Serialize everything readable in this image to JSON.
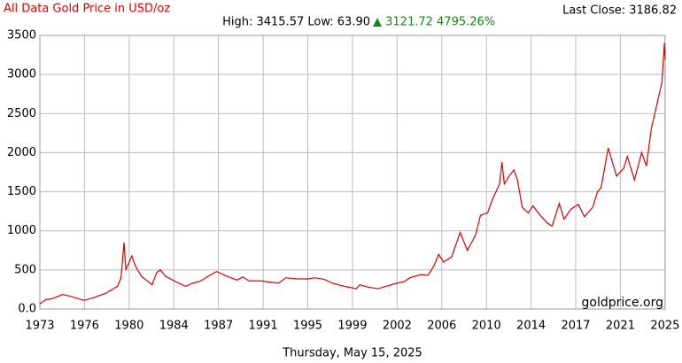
{
  "chart_data": {
    "type": "line",
    "title": "All Data Gold Price in USD/oz",
    "subtitle": "High: 3415.57 Low: 63.90",
    "change": "▲ 3121.72 4795.26%",
    "last_close": "Last Close: 3186.82",
    "watermark": "goldprice.org",
    "date": "Thursday, May 15, 2025",
    "x": [
      1973.0,
      1973.5,
      1974.0,
      1974.9,
      1975.5,
      1976.7,
      1977.5,
      1978.5,
      1979.5,
      1979.8,
      1980.05,
      1980.2,
      1980.7,
      1981.0,
      1981.5,
      1982.4,
      1982.8,
      1983.1,
      1983.5,
      1984.0,
      1984.5,
      1985.2,
      1985.8,
      1986.5,
      1987.0,
      1987.8,
      1988.5,
      1989.5,
      1990.0,
      1990.5,
      1991.5,
      1992.5,
      1993.0,
      1993.6,
      1994.5,
      1995.5,
      1996.0,
      1996.8,
      1997.5,
      1998.5,
      1999.5,
      1999.8,
      2000.5,
      2001.3,
      2002.0,
      2002.9,
      2003.5,
      2004.0,
      2004.9,
      2005.5,
      2006.0,
      2006.4,
      2006.8,
      2007.5,
      2008.2,
      2008.8,
      2009.5,
      2009.9,
      2010.5,
      2010.9,
      2011.5,
      2011.7,
      2011.9,
      2012.3,
      2012.7,
      2013.0,
      2013.4,
      2013.9,
      2014.3,
      2014.9,
      2015.5,
      2015.9,
      2016.5,
      2016.9,
      2017.5,
      2018.1,
      2018.6,
      2019.3,
      2019.7,
      2020.0,
      2020.6,
      2021.0,
      2021.3,
      2021.9,
      2022.2,
      2022.8,
      2023.4,
      2023.8,
      2024.2,
      2024.8,
      2025.1,
      2025.3,
      2025.37
    ],
    "series": [
      {
        "name": "Gold",
        "color": "#dd0000",
        "values": [
          65,
          120,
          130,
          185,
          165,
          110,
          145,
          200,
          290,
          400,
          850,
          500,
          680,
          550,
          420,
          310,
          470,
          500,
          420,
          380,
          340,
          290,
          330,
          360,
          410,
          480,
          430,
          370,
          410,
          360,
          360,
          340,
          330,
          400,
          385,
          385,
          400,
          380,
          330,
          290,
          260,
          310,
          280,
          260,
          290,
          330,
          350,
          400,
          440,
          430,
          550,
          700,
          600,
          670,
          980,
          750,
          950,
          1200,
          1230,
          1400,
          1600,
          1880,
          1600,
          1700,
          1780,
          1650,
          1300,
          1230,
          1320,
          1200,
          1100,
          1060,
          1350,
          1150,
          1280,
          1340,
          1180,
          1300,
          1500,
          1550,
          2060,
          1850,
          1700,
          1800,
          1950,
          1650,
          2000,
          1830,
          2300,
          2700,
          2900,
          3400,
          3186
        ]
      }
    ],
    "xlim": [
      1973.0,
      2025.37
    ],
    "xticks": [
      {
        "value": 1973.0,
        "label": "1973"
      },
      {
        "value": 1976.74,
        "label": "1976"
      },
      {
        "value": 1980.48,
        "label": "1980"
      },
      {
        "value": 1984.22,
        "label": "1984"
      },
      {
        "value": 1987.96,
        "label": "1987"
      },
      {
        "value": 1991.7,
        "label": "1991"
      },
      {
        "value": 1995.44,
        "label": "1995"
      },
      {
        "value": 1999.18,
        "label": "1999"
      },
      {
        "value": 2002.92,
        "label": "2002"
      },
      {
        "value": 2006.66,
        "label": "2006"
      },
      {
        "value": 2010.4,
        "label": "2010"
      },
      {
        "value": 2014.14,
        "label": "2014"
      },
      {
        "value": 2017.88,
        "label": "2017"
      },
      {
        "value": 2021.62,
        "label": "2021"
      },
      {
        "value": 2025.36,
        "label": "2025"
      }
    ],
    "ylim": [
      0,
      3500
    ],
    "yticks": [
      {
        "value": 0,
        "label": "0.0"
      },
      500,
      1000,
      1500,
      2000,
      2500,
      3000,
      3500
    ],
    "grid": true
  }
}
